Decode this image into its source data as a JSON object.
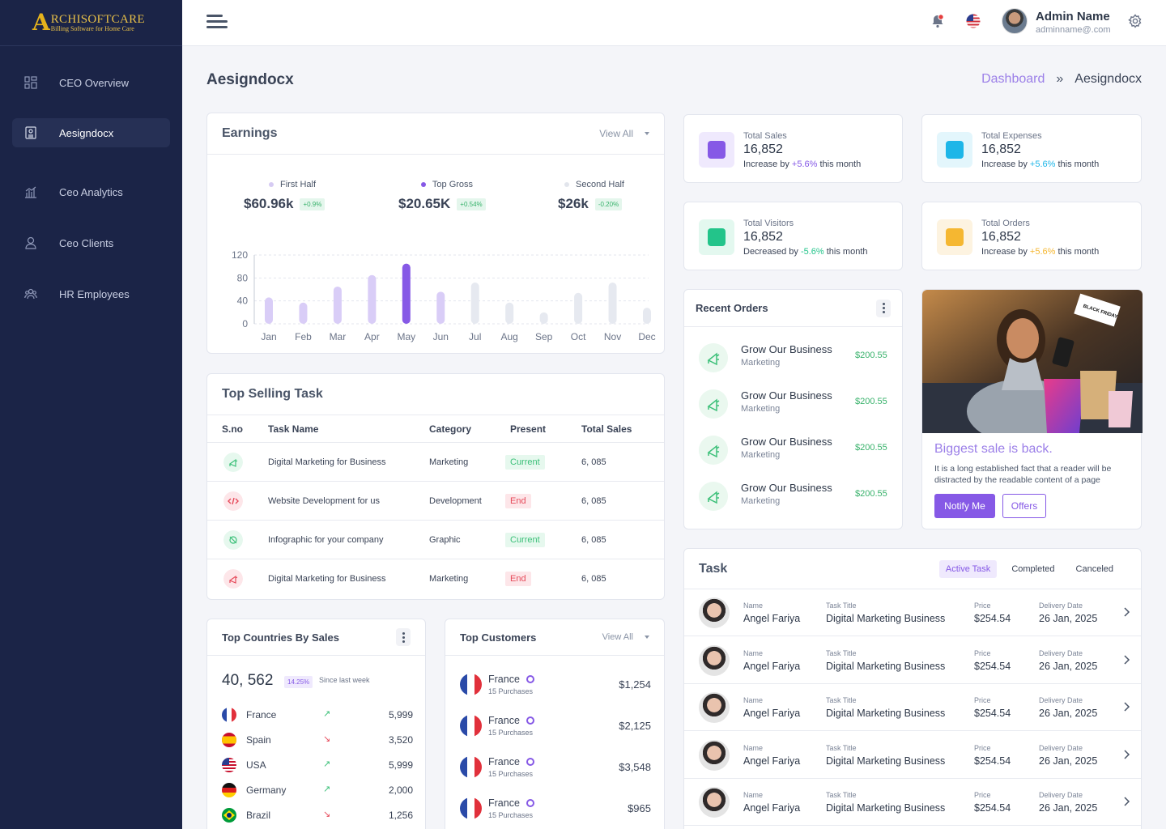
{
  "brand": {
    "mark": "A",
    "name": "RCHISOFTCARE",
    "tagline": "Billing Software for Home Care"
  },
  "sidebar": {
    "items": [
      {
        "label": "CEO Overview"
      },
      {
        "label": "Aesigndocx"
      },
      {
        "label": "Ceo Analytics"
      },
      {
        "label": "Ceo Clients"
      },
      {
        "label": "HR Employees"
      }
    ]
  },
  "header": {
    "user_name": "Admin Name",
    "user_email": "adminname@.com"
  },
  "page": {
    "title": "Aesigndocx",
    "breadcrumb": [
      "Dashboard",
      "Aesigndocx"
    ]
  },
  "earnings": {
    "title": "Earnings",
    "view_all": "View All",
    "stats": [
      {
        "label": "First Half",
        "value": "$60.96k",
        "change": "+0.9%"
      },
      {
        "label": "Top Gross",
        "value": "$20.65K",
        "change": "+0.54%"
      },
      {
        "label": "Second Half",
        "value": "$26k",
        "change": "-0.20%"
      }
    ]
  },
  "chart_data": {
    "type": "bar",
    "categories": [
      "Jan",
      "Feb",
      "Mar",
      "Apr",
      "May",
      "Jun",
      "Jul",
      "Aug",
      "Sep",
      "Oct",
      "Nov",
      "Dec"
    ],
    "values": [
      46,
      37,
      65,
      85,
      105,
      56,
      72,
      37,
      20,
      54,
      72,
      28
    ],
    "ylim": [
      0,
      120
    ],
    "yticks": [
      0,
      40,
      80,
      120
    ],
    "highlight": "May",
    "colors": {
      "first_half": "#d9cdf7",
      "highlight": "#8659e6",
      "second_half": "#e6e9f0"
    }
  },
  "top_selling": {
    "title": "Top Selling Task",
    "columns": [
      "S.no",
      "Task Name",
      "Category",
      "Present",
      "Total Sales"
    ],
    "rows": [
      {
        "icon": "megaphone-icon",
        "task": "Digital Marketing for Business",
        "category": "Marketing",
        "status": "Current",
        "sales": "6, 085"
      },
      {
        "icon": "code-icon",
        "task": "Website Development for us",
        "category": "Development",
        "status": "End",
        "sales": "6, 085"
      },
      {
        "icon": "graphic-icon",
        "task": "Infographic for your company",
        "category": "Graphic",
        "status": "Current",
        "sales": "6, 085"
      },
      {
        "icon": "megaphone-icon",
        "task": "Digital Marketing for Business",
        "category": "Marketing",
        "status": "End",
        "sales": "6, 085"
      }
    ]
  },
  "stats": [
    {
      "label": "Total Sales",
      "value": "16,852",
      "prefix": "Increase by ",
      "change": "+5.6%",
      "suffix": " this month",
      "color": "#8659e6"
    },
    {
      "label": "Total Expenses",
      "value": "16,852",
      "prefix": "Increase by ",
      "change": "+5.6%",
      "suffix": " this month",
      "color": "#1eb6e8"
    },
    {
      "label": "Total Visitors",
      "value": "16,852",
      "prefix": "Decreased by ",
      "change": "-5.6%",
      "suffix": " this month",
      "color": "#23c48a"
    },
    {
      "label": "Total Orders",
      "value": "16,852",
      "prefix": "Increase by ",
      "change": "+5.6%",
      "suffix": " this month",
      "color": "#f5b731"
    }
  ],
  "recent_orders": {
    "title": "Recent Orders",
    "items": [
      {
        "title": "Grow Our Business",
        "sub": "Marketing",
        "amount": "$200.55"
      },
      {
        "title": "Grow Our Business",
        "sub": "Marketing",
        "amount": "$200.55"
      },
      {
        "title": "Grow Our Business",
        "sub": "Marketing",
        "amount": "$200.55"
      },
      {
        "title": "Grow Our Business",
        "sub": "Marketing",
        "amount": "$200.55"
      }
    ]
  },
  "promo": {
    "badge": "BLACK FRIDAY",
    "title": "Biggest sale is back.",
    "text": "It is a long established fact that a reader will be distracted by the readable content of a page",
    "primary": "Notify Me",
    "secondary": "Offers"
  },
  "task": {
    "title": "Task",
    "tabs": [
      "Active Task",
      "Completed",
      "Canceled"
    ],
    "labels": {
      "name": "Name",
      "title": "Task Title",
      "price": "Price",
      "date": "Delivery Date"
    },
    "rows": [
      {
        "name": "Angel Fariya",
        "title": "Digital Marketing Business",
        "price": "$254.54",
        "date": "26 Jan, 2025"
      },
      {
        "name": "Angel Fariya",
        "title": "Digital Marketing Business",
        "price": "$254.54",
        "date": "26 Jan, 2025"
      },
      {
        "name": "Angel Fariya",
        "title": "Digital Marketing Business",
        "price": "$254.54",
        "date": "26 Jan, 2025"
      },
      {
        "name": "Angel Fariya",
        "title": "Digital Marketing Business",
        "price": "$254.54",
        "date": "26 Jan, 2025"
      },
      {
        "name": "Angel Fariya",
        "title": "Digital Marketing Business",
        "price": "$254.54",
        "date": "26 Jan, 2025"
      }
    ]
  },
  "countries": {
    "title": "Top Countries By Sales",
    "total": "40, 562",
    "change": "14.25%",
    "since": "Since last week",
    "items": [
      {
        "name": "France",
        "trend": "up",
        "value": "5,999"
      },
      {
        "name": "Spain",
        "trend": "down",
        "value": "3,520"
      },
      {
        "name": "USA",
        "trend": "up",
        "value": "5,999"
      },
      {
        "name": "Germany",
        "trend": "up",
        "value": "2,000"
      },
      {
        "name": "Brazil",
        "trend": "down",
        "value": "1,256"
      }
    ]
  },
  "customers": {
    "title": "Top Customers",
    "view_all": "View All",
    "items": [
      {
        "name": "France",
        "sub": "15 Purchases",
        "amount": "$1,254"
      },
      {
        "name": "France",
        "sub": "15 Purchases",
        "amount": "$2,125"
      },
      {
        "name": "France",
        "sub": "15 Purchases",
        "amount": "$3,548"
      },
      {
        "name": "France",
        "sub": "15 Purchases",
        "amount": "$965"
      }
    ]
  }
}
